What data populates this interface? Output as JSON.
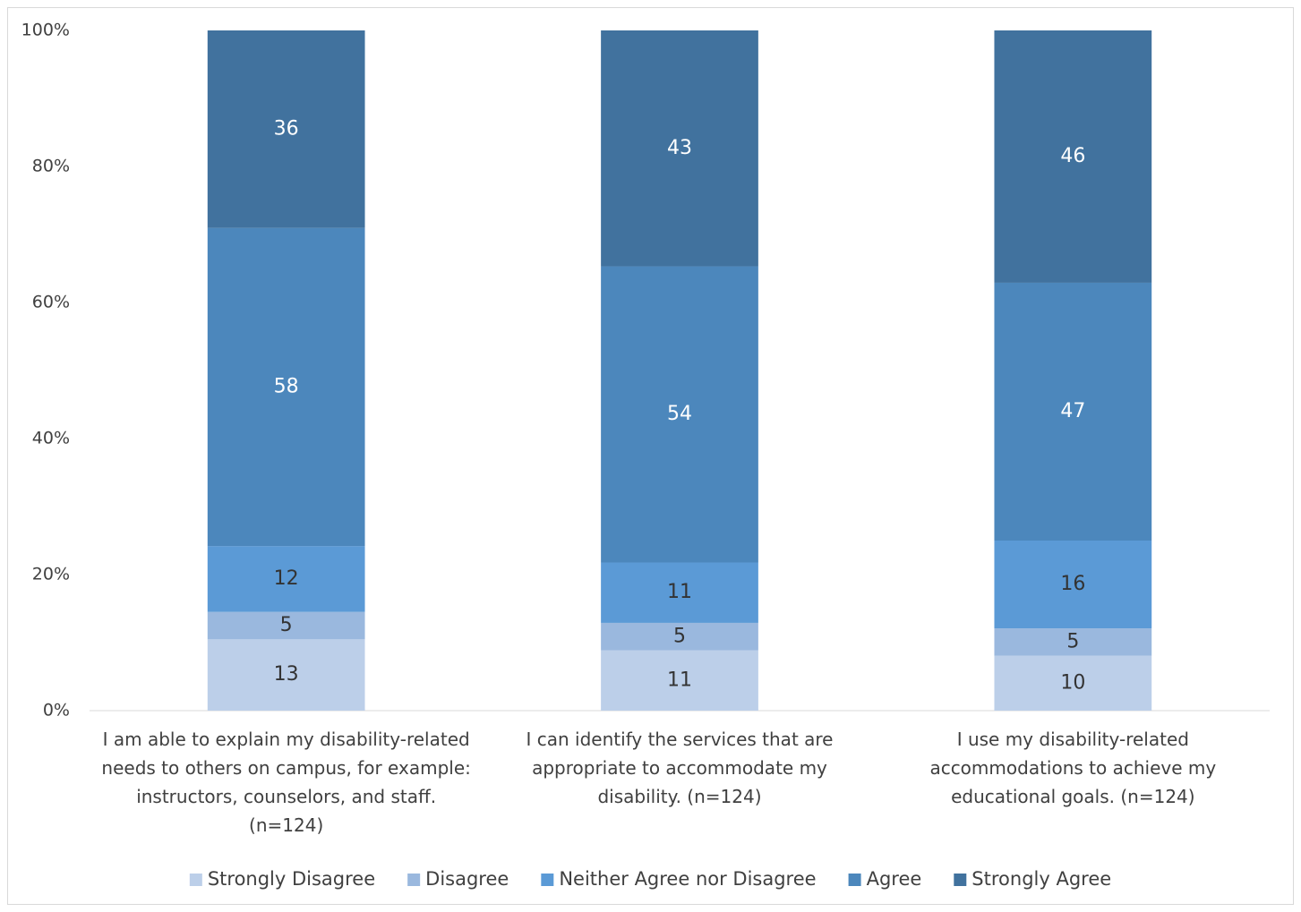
{
  "chart_data": {
    "type": "stacked_percent_bar",
    "categories": [
      "I am able to explain my disability-related needs to others on campus, for example: instructors, counselors, and staff. (n=124)",
      "I can identify the services that are appropriate to accommodate my disability. (n=124)",
      "I use my disability-related accommodations to achieve my educational goals. (n=124)"
    ],
    "series": [
      {
        "name": "Strongly Disagree",
        "color": "#bccfe9",
        "label_color": "#333333",
        "values": [
          13,
          11,
          10
        ]
      },
      {
        "name": "Disagree",
        "color": "#9ab8de",
        "label_color": "#333333",
        "values": [
          5,
          5,
          5
        ]
      },
      {
        "name": "Neither Agree nor Disagree",
        "color": "#5b9ad6",
        "label_color": "#333333",
        "values": [
          12,
          11,
          16
        ]
      },
      {
        "name": "Agree",
        "color": "#4c87bc",
        "label_color": "#ffffff",
        "values": [
          58,
          54,
          47
        ]
      },
      {
        "name": "Strongly Agree",
        "color": "#41729e",
        "label_color": "#ffffff",
        "values": [
          36,
          43,
          46
        ]
      }
    ],
    "ylim": [
      0,
      100
    ],
    "yticks": [
      {
        "value": 0,
        "label": "0%"
      },
      {
        "value": 20,
        "label": "20%"
      },
      {
        "value": 40,
        "label": "40%"
      },
      {
        "value": 60,
        "label": "60%"
      },
      {
        "value": 80,
        "label": "80%"
      },
      {
        "value": 100,
        "label": "100%"
      }
    ],
    "legend": "bottom"
  }
}
